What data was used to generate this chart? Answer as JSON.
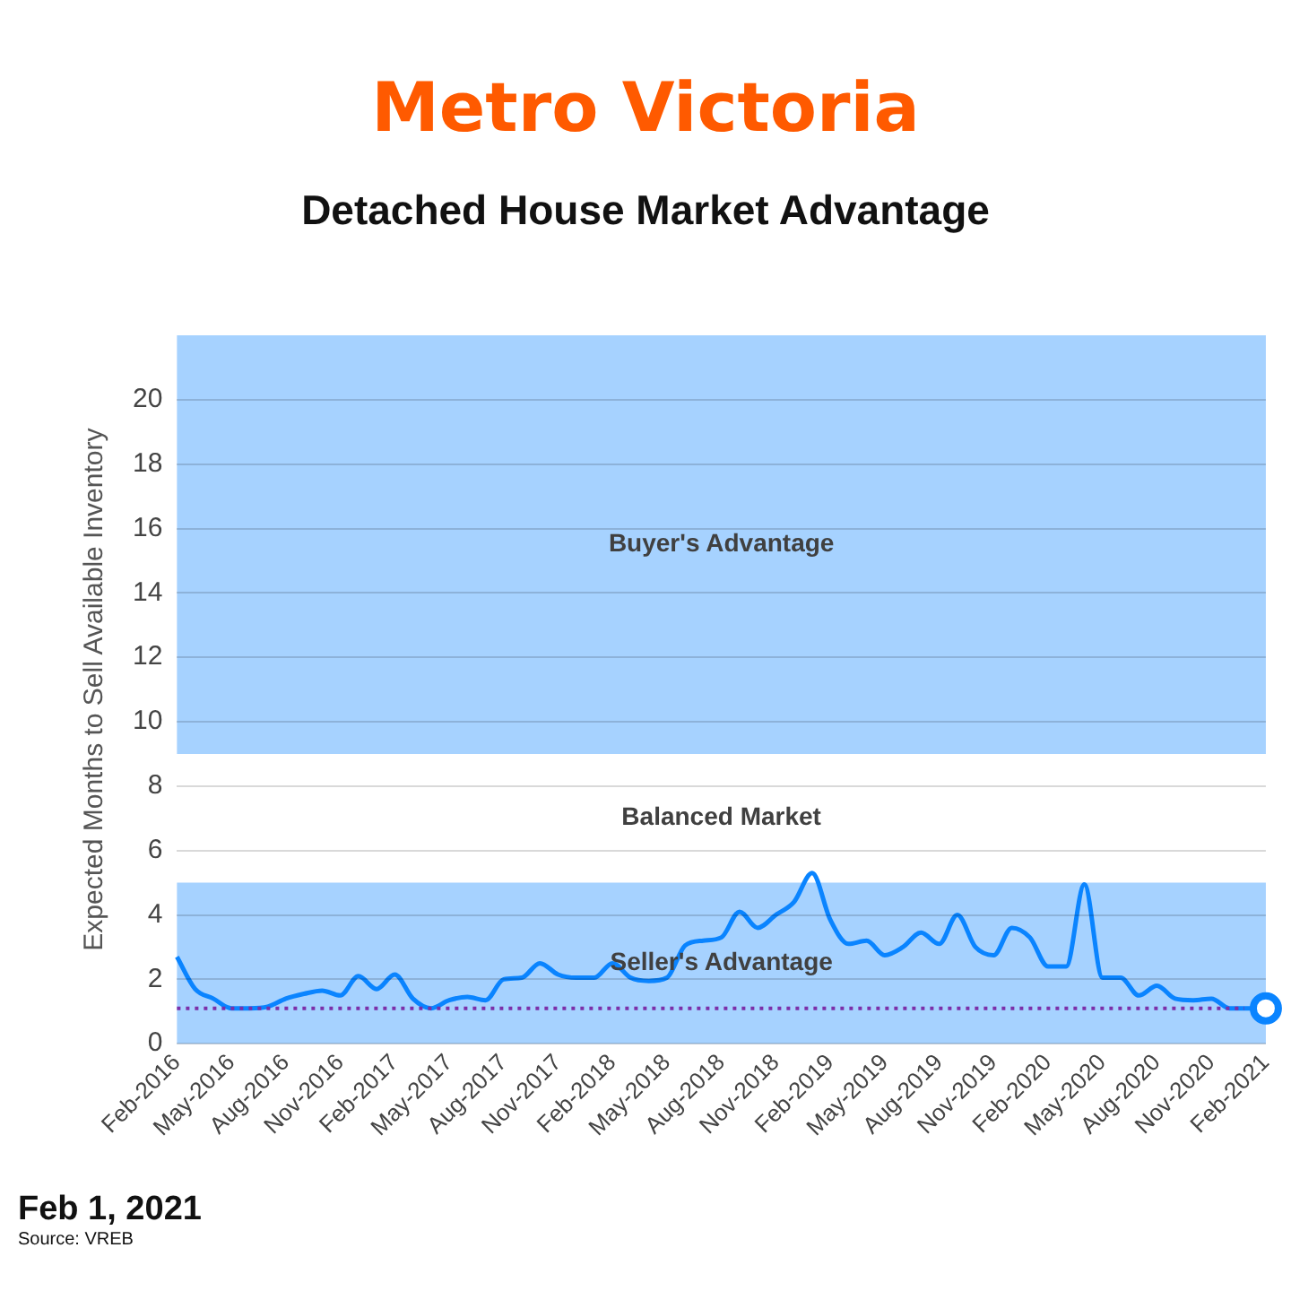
{
  "chart_data": {
    "type": "line",
    "title": "Metro Victoria",
    "subtitle": "Detached House Market Advantage",
    "ylabel": "Expected Months to Sell Available Inventory",
    "categories": [
      "Feb-2016",
      null,
      null,
      "May-2016",
      null,
      null,
      "Aug-2016",
      null,
      null,
      "Nov-2016",
      null,
      null,
      "Feb-2017",
      null,
      null,
      "May-2017",
      null,
      null,
      "Aug-2017",
      null,
      null,
      "Nov-2017",
      null,
      null,
      "Feb-2018",
      null,
      null,
      "May-2018",
      null,
      null,
      "Aug-2018",
      null,
      null,
      "Nov-2018",
      null,
      null,
      "Feb-2019",
      null,
      null,
      "May-2019",
      null,
      null,
      "Aug-2019",
      null,
      null,
      "Nov-2019",
      null,
      null,
      "Feb-2020",
      null,
      null,
      "May-2020",
      null,
      null,
      "Aug-2020",
      null,
      null,
      "Nov-2020",
      null,
      null,
      "Feb-2021"
    ],
    "series": [
      {
        "color": "#0a84ff",
        "values": [
          2.7,
          1.7,
          1.4,
          1.1,
          1.1,
          1.15,
          1.4,
          1.55,
          1.65,
          1.5,
          2.1,
          1.7,
          2.15,
          1.4,
          1.1,
          1.35,
          1.45,
          1.35,
          2.0,
          2.05,
          2.5,
          2.15,
          2.05,
          2.05,
          2.5,
          2.05,
          1.95,
          2.05,
          3.05,
          3.2,
          3.3,
          4.1,
          3.6,
          4.0,
          4.4,
          5.3,
          3.85,
          3.1,
          3.2,
          2.75,
          3.0,
          3.45,
          3.1,
          4.0,
          3.0,
          2.75,
          3.6,
          3.3,
          2.4,
          2.4,
          4.95,
          2.05,
          2.05,
          1.5,
          1.8,
          1.4,
          1.35,
          1.4,
          1.1,
          1.1,
          1.1
        ]
      }
    ],
    "ylim": [
      0,
      22
    ],
    "yticks": [
      0,
      2,
      4,
      6,
      8,
      10,
      12,
      14,
      16,
      18,
      20
    ],
    "grid": "y",
    "legend": false,
    "bands": [
      {
        "axis": "y",
        "from": 9,
        "to": 22,
        "label": "Buyer's Advantage",
        "color": "#a6d2ff"
      },
      {
        "axis": "y",
        "from": 0,
        "to": 5,
        "label": "Seller's Advantage",
        "color": "#a6d2ff"
      }
    ],
    "ref_lines": [
      {
        "axis": "y",
        "value": 1.1,
        "color": "#7b2fa8",
        "line_style": "dotted"
      }
    ],
    "annotations": [
      "Balanced Market",
      "Feb 1, 2021",
      "Source: VREB"
    ]
  }
}
